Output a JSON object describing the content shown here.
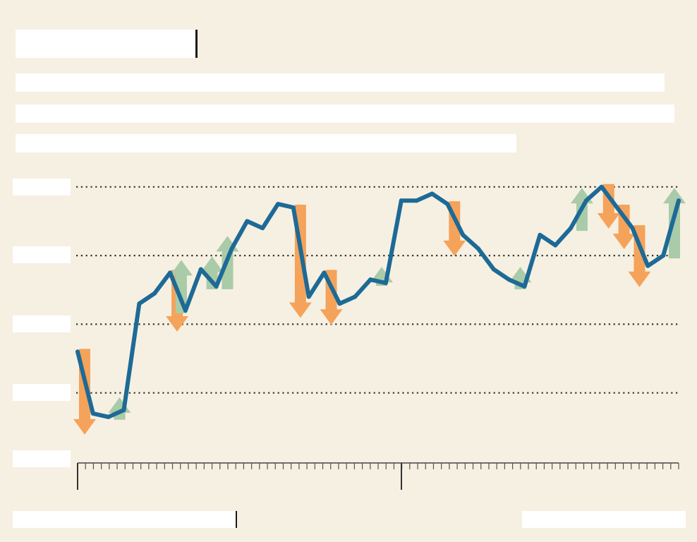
{
  "header": {
    "title": "",
    "subtitle_lines": [
      "",
      "",
      ""
    ]
  },
  "footer": {
    "source": "",
    "credit": ""
  },
  "colors": {
    "background": "#f6f0e2",
    "line": "#1d6a96",
    "up_arrow": "#a9cba8",
    "down_arrow": "#f5a35a",
    "gridline": "#333333"
  },
  "chart_data": {
    "type": "line",
    "title": "",
    "xlabel": "",
    "ylabel": "",
    "grid": true,
    "y_grid_values": [
      10,
      20,
      30,
      40
    ],
    "ylim": [
      0,
      42.5
    ],
    "x_count": 40,
    "series": [
      {
        "values": [
          16,
          7,
          6.5,
          7.5,
          23,
          24.5,
          27.5,
          22,
          28,
          25.5,
          31,
          35,
          34,
          37.5,
          37,
          24,
          27.5,
          23,
          24,
          26.5,
          26,
          38,
          38,
          39,
          37.5,
          33,
          31,
          28,
          26.5,
          25.5,
          33,
          31.5,
          34,
          38,
          40,
          37,
          34,
          28.5,
          30,
          38
        ]
      }
    ],
    "annotations": [
      {
        "kind": "down",
        "index": 0
      },
      {
        "kind": "up",
        "index": 3
      },
      {
        "kind": "down",
        "index": 6
      },
      {
        "kind": "up",
        "index": 7
      },
      {
        "kind": "up",
        "index": 9
      },
      {
        "kind": "up",
        "index": 10
      },
      {
        "kind": "down",
        "index": 14
      },
      {
        "kind": "down",
        "index": 16
      },
      {
        "kind": "up",
        "index": 20
      },
      {
        "kind": "down",
        "index": 24
      },
      {
        "kind": "up",
        "index": 29
      },
      {
        "kind": "up",
        "index": 33
      },
      {
        "kind": "down",
        "index": 34
      },
      {
        "kind": "down",
        "index": 35
      },
      {
        "kind": "down",
        "index": 36
      },
      {
        "kind": "up",
        "index": 39
      }
    ]
  }
}
